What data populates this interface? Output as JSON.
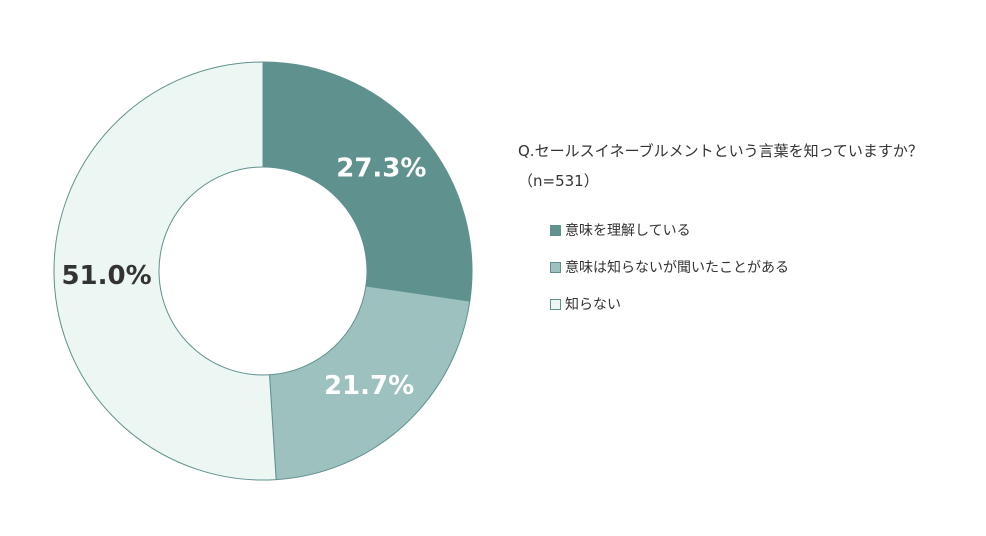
{
  "chart_data": {
    "type": "pie",
    "title": "Q.セールスイネーブルメントという言葉を知っていますか？",
    "subtitle": "（n=531）",
    "unit": "%",
    "legend_position": "right",
    "categories": [
      "意味を理解している",
      "意味は知らないが聞いたことがある",
      "知らない"
    ],
    "values": [
      27.3,
      21.7,
      51.0
    ],
    "labels": [
      "27.3%",
      "21.7%",
      "51.0%"
    ],
    "colors": [
      "#5f928e",
      "#9dc1be",
      "#ecf6f3"
    ],
    "label_colors": [
      "#ffffff",
      "#ffffff",
      "#333333"
    ],
    "stroke_color": "#5f928e"
  }
}
